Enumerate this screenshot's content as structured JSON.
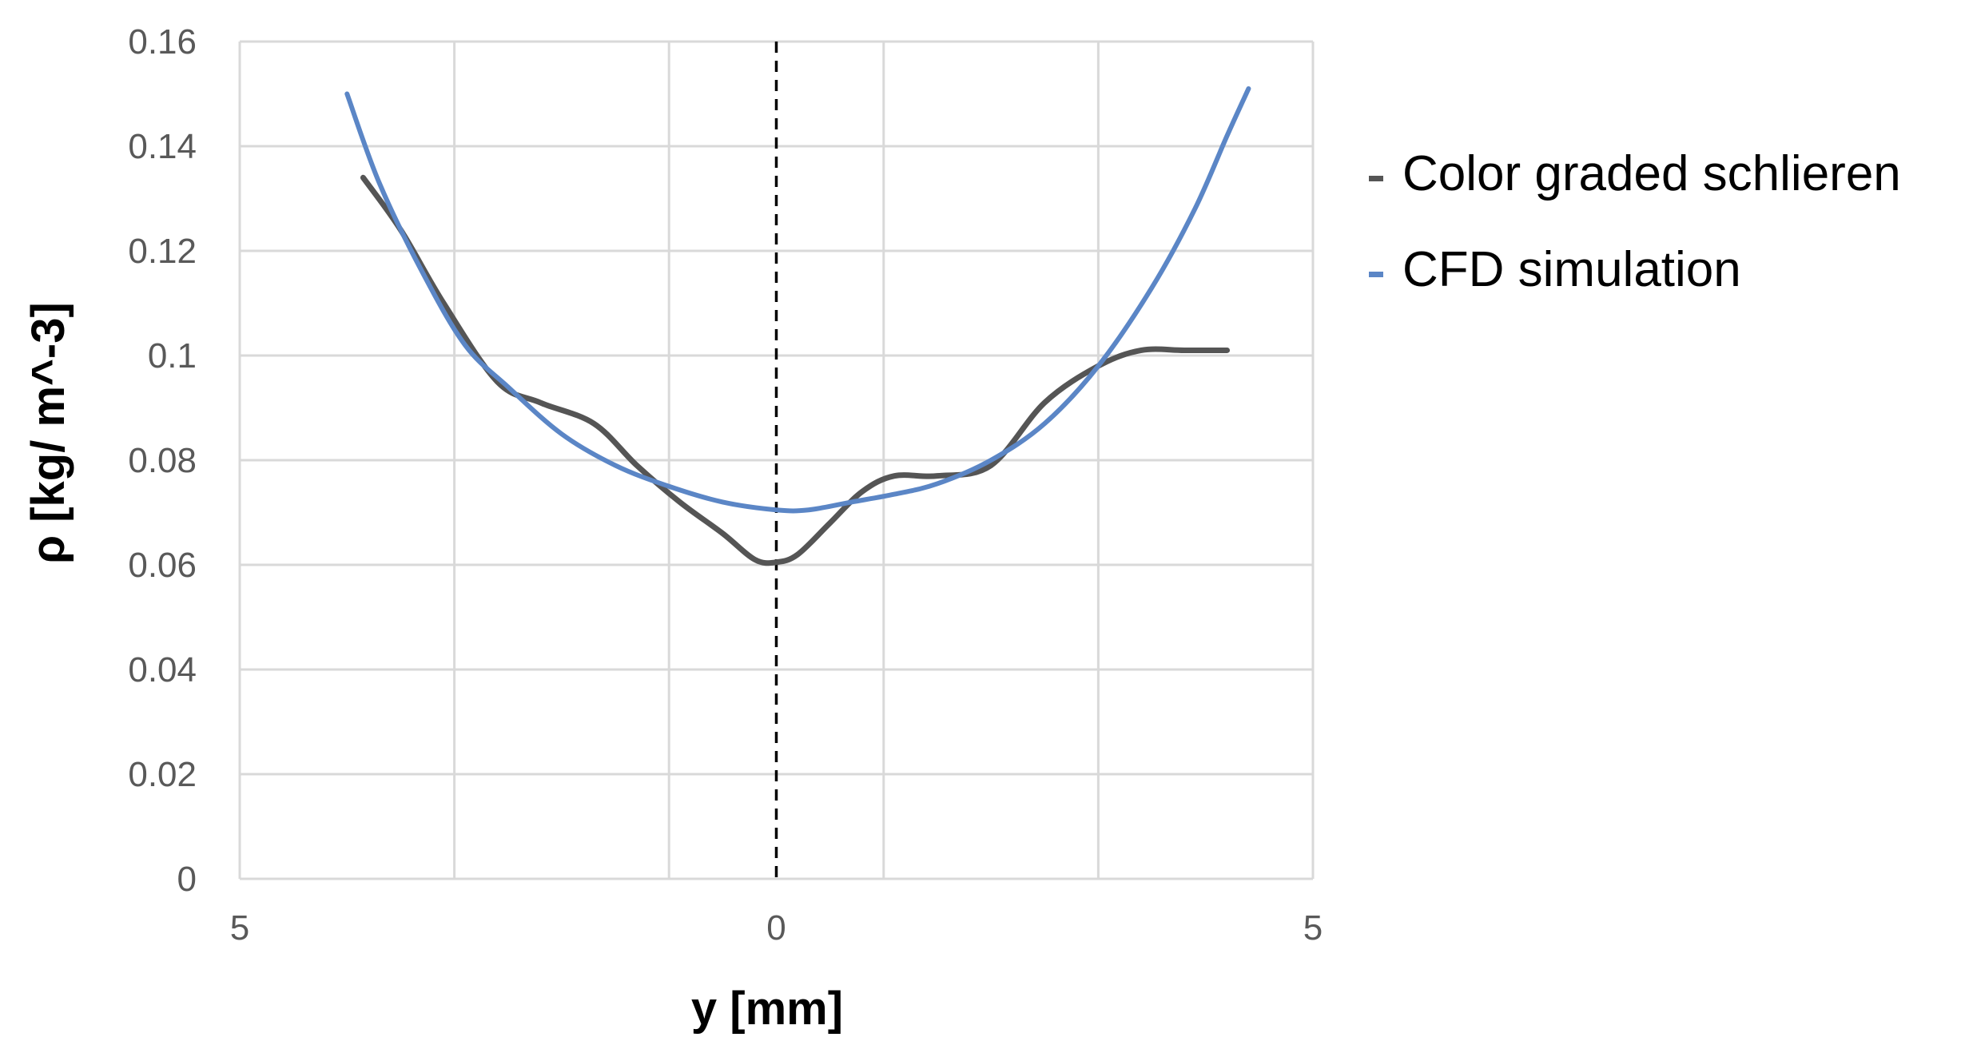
{
  "chart_data": {
    "type": "line",
    "title": "",
    "xlabel": "y [mm]",
    "ylabel": "ρ [kg/ m^-3]",
    "xlim": [
      -5,
      5
    ],
    "ylim": [
      0,
      0.16
    ],
    "x_tick_labels": [
      {
        "x": -5,
        "label": "5"
      },
      {
        "x": 0,
        "label": "0"
      },
      {
        "x": 5,
        "label": "5"
      }
    ],
    "x_grid": [
      -5,
      -3,
      -1,
      1,
      3,
      5
    ],
    "y_ticks": [
      0,
      0.02,
      0.04,
      0.06,
      0.08,
      0.1,
      0.12,
      0.14,
      0.16
    ],
    "y_tick_labels": [
      "0",
      "0.02",
      "0.04",
      "0.06",
      "0.08",
      "0.1",
      "0.12",
      "0.14",
      "0.16"
    ],
    "grid": true,
    "reference_line": {
      "x": 0,
      "style": "dashed",
      "color": "#000000"
    },
    "legend_position": "right",
    "series": [
      {
        "name": "Color graded schlieren",
        "color": "#555555",
        "x": [
          -3.85,
          -3.5,
          -3.1,
          -2.6,
          -2.2,
          -1.7,
          -1.3,
          -0.9,
          -0.5,
          -0.2,
          0.0,
          0.2,
          0.5,
          0.8,
          1.1,
          1.5,
          2.0,
          2.5,
          3.0,
          3.4,
          3.8,
          4.2
        ],
        "y": [
          0.134,
          0.124,
          0.11,
          0.095,
          0.091,
          0.087,
          0.079,
          0.072,
          0.066,
          0.061,
          0.0605,
          0.062,
          0.068,
          0.074,
          0.077,
          0.077,
          0.079,
          0.091,
          0.098,
          0.101,
          0.101,
          0.101
        ]
      },
      {
        "name": "CFD simulation",
        "color": "#5B86C6",
        "x": [
          -4.0,
          -3.7,
          -3.3,
          -2.9,
          -2.5,
          -2.0,
          -1.5,
          -1.0,
          -0.5,
          0.0,
          0.3,
          0.7,
          1.1,
          1.5,
          2.0,
          2.5,
          3.0,
          3.5,
          3.9,
          4.2,
          4.4
        ],
        "y": [
          0.15,
          0.133,
          0.116,
          0.102,
          0.094,
          0.085,
          0.079,
          0.075,
          0.072,
          0.0705,
          0.0705,
          0.072,
          0.0735,
          0.0755,
          0.08,
          0.087,
          0.098,
          0.113,
          0.128,
          0.142,
          0.151
        ]
      }
    ]
  }
}
